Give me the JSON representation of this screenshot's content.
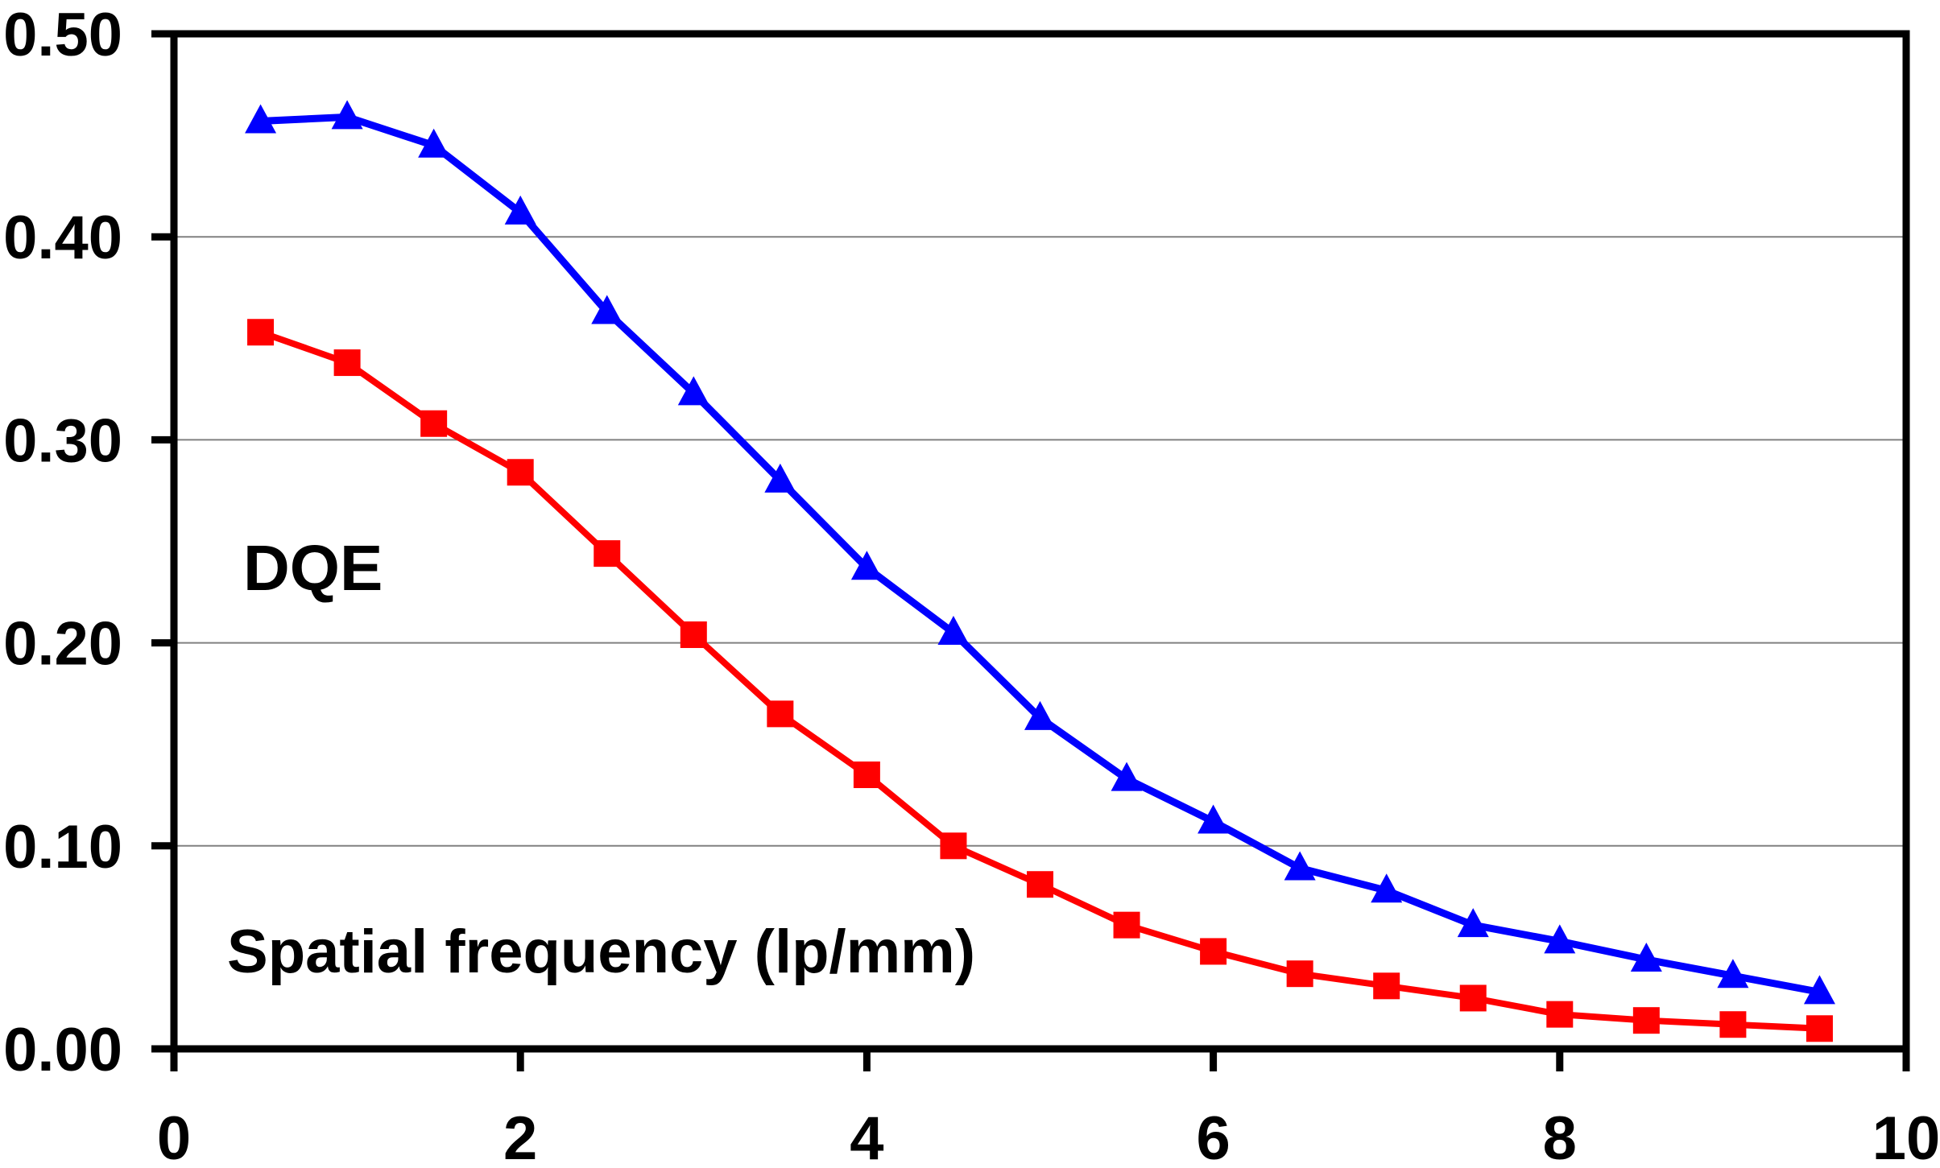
{
  "figure": {
    "background": "#FFFFFF",
    "axis_color": "#000000",
    "gridline_color": "#808080"
  },
  "chart_data": {
    "type": "line",
    "title": "",
    "inner_labels": {
      "dqe": "DQE",
      "spatial_frequency": "Spatial frequency (lp/mm)"
    },
    "x": [
      0.5,
      1.0,
      1.5,
      2.0,
      2.5,
      3.0,
      3.5,
      4.0,
      4.5,
      5.0,
      5.5,
      6.0,
      6.5,
      7.0,
      7.5,
      8.0,
      8.5,
      9.0,
      9.5
    ],
    "series": [
      {
        "name": "blue-triangle-series",
        "marker": "triangle",
        "color": "#0000FE",
        "values": [
          0.457,
          0.459,
          0.445,
          0.412,
          0.363,
          0.323,
          0.28,
          0.237,
          0.205,
          0.163,
          0.133,
          0.112,
          0.089,
          0.078,
          0.061,
          0.053,
          0.044,
          0.036,
          0.028
        ]
      },
      {
        "name": "red-square-series",
        "marker": "square",
        "color": "#FF0000",
        "values": [
          0.353,
          0.338,
          0.308,
          0.284,
          0.244,
          0.204,
          0.165,
          0.135,
          0.1,
          0.081,
          0.061,
          0.048,
          0.037,
          0.031,
          0.025,
          0.017,
          0.014,
          0.012,
          0.01
        ]
      }
    ],
    "xlim": [
      0,
      10
    ],
    "ylim": [
      0,
      0.5
    ],
    "x_ticks": [
      0,
      2,
      4,
      6,
      8,
      10
    ],
    "x_tick_labels": [
      "0",
      "2",
      "4",
      "6",
      "8",
      "10"
    ],
    "y_ticks": [
      0,
      0.1,
      0.2,
      0.3,
      0.4,
      0.5
    ],
    "y_tick_labels": [
      "0.00",
      "0.10",
      "0.20",
      "0.30",
      "0.40",
      "0.50"
    ],
    "grid": "horizontal",
    "legend": "none",
    "xlabel": "Spatial frequency (lp/mm)",
    "ylabel": "DQE"
  }
}
